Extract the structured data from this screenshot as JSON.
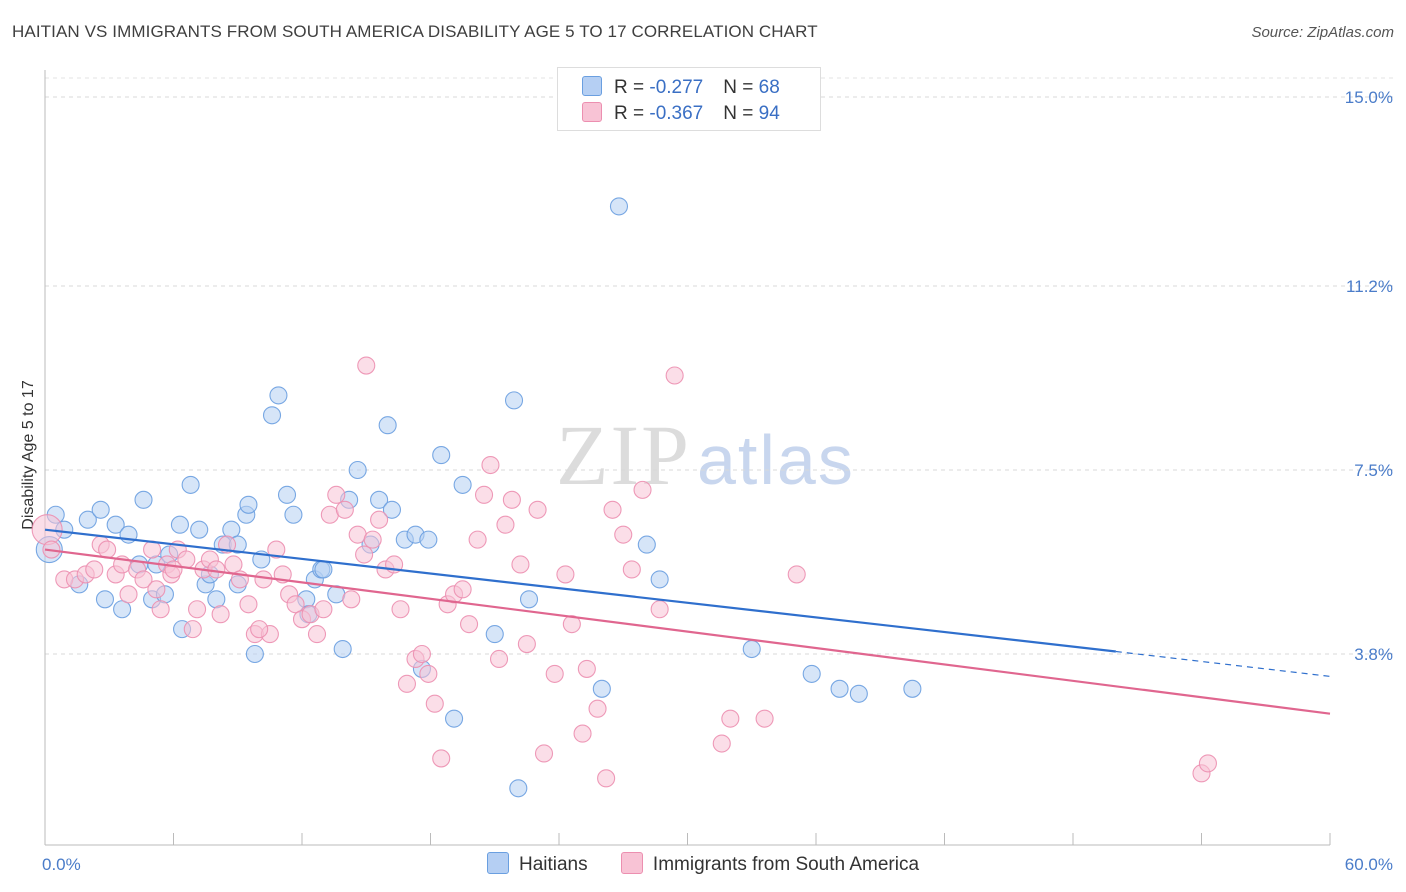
{
  "title": "HAITIAN VS IMMIGRANTS FROM SOUTH AMERICA DISABILITY AGE 5 TO 17 CORRELATION CHART",
  "source": "Source: ZipAtlas.com",
  "watermark": {
    "zip": "ZIP",
    "atlas": "atlas"
  },
  "legend": {
    "rows": [
      {
        "r_label": "R = ",
        "r_value": "-0.277",
        "n_label": "N = ",
        "n_value": "68"
      },
      {
        "r_label": "R = ",
        "r_value": "-0.367",
        "n_label": "N = ",
        "n_value": "94"
      }
    ]
  },
  "colors": {
    "blue": "#6a9fe0",
    "blue_fill": "#b5cff3",
    "pink": "#ec8fb0",
    "pink_fill": "#f8c3d5",
    "blue_line": "#2f6fcd",
    "pink_line": "#e0668f"
  },
  "chart_data": {
    "type": "scatter",
    "title": "HAITIAN VS IMMIGRANTS FROM SOUTH AMERICA DISABILITY AGE 5 TO 17 CORRELATION CHART",
    "xlabel": "",
    "ylabel": "Disability Age 5 to 17",
    "xlim": [
      0,
      60
    ],
    "ylim": [
      0,
      15.5
    ],
    "x_tick_labels": [
      "0.0%",
      "60.0%"
    ],
    "y_ticks": [
      3.8,
      7.5,
      11.2,
      15.0
    ],
    "y_tick_labels": [
      "3.8%",
      "7.5%",
      "11.2%",
      "15.0%"
    ],
    "grid": true,
    "legend_position": "top-center",
    "series": [
      {
        "name": "Haitians",
        "color": "#6a9fe0",
        "trend": {
          "x": [
            0,
            50
          ],
          "y": [
            6.3,
            3.85
          ],
          "dashed_to": [
            60,
            3.35
          ]
        },
        "points": [
          [
            0.2,
            5.9
          ],
          [
            0.5,
            6.6
          ],
          [
            0.9,
            6.3
          ],
          [
            1.6,
            5.2
          ],
          [
            2.0,
            6.5
          ],
          [
            2.6,
            6.7
          ],
          [
            2.8,
            4.9
          ],
          [
            3.3,
            6.4
          ],
          [
            3.6,
            4.7
          ],
          [
            3.9,
            6.2
          ],
          [
            4.4,
            5.6
          ],
          [
            4.6,
            6.9
          ],
          [
            5.0,
            4.9
          ],
          [
            5.2,
            5.6
          ],
          [
            5.6,
            5.0
          ],
          [
            5.8,
            5.8
          ],
          [
            6.3,
            6.4
          ],
          [
            6.4,
            4.3
          ],
          [
            6.8,
            7.2
          ],
          [
            7.2,
            6.3
          ],
          [
            7.5,
            5.2
          ],
          [
            7.7,
            5.4
          ],
          [
            8.0,
            4.9
          ],
          [
            8.3,
            6.0
          ],
          [
            8.7,
            6.3
          ],
          [
            9.0,
            5.2
          ],
          [
            9.4,
            6.6
          ],
          [
            9.5,
            6.8
          ],
          [
            9.8,
            3.8
          ],
          [
            10.1,
            5.7
          ],
          [
            10.6,
            8.6
          ],
          [
            10.9,
            9.0
          ],
          [
            11.3,
            7.0
          ],
          [
            11.6,
            6.6
          ],
          [
            12.2,
            4.9
          ],
          [
            12.3,
            4.6
          ],
          [
            12.6,
            5.3
          ],
          [
            12.9,
            5.5
          ],
          [
            13.6,
            5.0
          ],
          [
            13.9,
            3.9
          ],
          [
            14.2,
            6.9
          ],
          [
            14.6,
            7.5
          ],
          [
            15.2,
            6.0
          ],
          [
            15.6,
            6.9
          ],
          [
            16.0,
            8.4
          ],
          [
            16.2,
            6.7
          ],
          [
            16.8,
            6.1
          ],
          [
            17.3,
            6.2
          ],
          [
            17.6,
            3.5
          ],
          [
            17.9,
            6.1
          ],
          [
            18.5,
            7.8
          ],
          [
            19.1,
            2.5
          ],
          [
            19.5,
            7.2
          ],
          [
            21.0,
            4.2
          ],
          [
            21.9,
            8.9
          ],
          [
            22.1,
            1.1
          ],
          [
            22.6,
            4.9
          ],
          [
            26.0,
            3.1
          ],
          [
            26.8,
            12.8
          ],
          [
            28.1,
            6.0
          ],
          [
            28.7,
            5.3
          ],
          [
            33.0,
            3.9
          ],
          [
            35.8,
            3.4
          ],
          [
            37.1,
            3.1
          ],
          [
            38.0,
            3.0
          ],
          [
            40.5,
            3.1
          ],
          [
            13.0,
            5.5
          ],
          [
            9.0,
            6.0
          ]
        ]
      },
      {
        "name": "Immigrants from South America",
        "color": "#ec8fb0",
        "trend": {
          "x": [
            0,
            60
          ],
          "y": [
            5.9,
            2.6
          ]
        },
        "points": [
          [
            0.1,
            6.3
          ],
          [
            0.3,
            5.9
          ],
          [
            0.9,
            5.3
          ],
          [
            1.4,
            5.3
          ],
          [
            1.9,
            5.4
          ],
          [
            2.3,
            5.5
          ],
          [
            2.6,
            6.0
          ],
          [
            2.9,
            5.9
          ],
          [
            3.3,
            5.4
          ],
          [
            3.6,
            5.6
          ],
          [
            3.9,
            5.0
          ],
          [
            4.3,
            5.5
          ],
          [
            4.6,
            5.3
          ],
          [
            5.0,
            5.9
          ],
          [
            5.2,
            5.1
          ],
          [
            5.4,
            4.7
          ],
          [
            5.7,
            5.6
          ],
          [
            5.9,
            5.4
          ],
          [
            6.2,
            5.9
          ],
          [
            6.6,
            5.7
          ],
          [
            6.9,
            4.3
          ],
          [
            7.1,
            4.7
          ],
          [
            7.4,
            5.5
          ],
          [
            7.7,
            5.7
          ],
          [
            8.0,
            5.5
          ],
          [
            8.2,
            4.6
          ],
          [
            8.5,
            6.0
          ],
          [
            8.8,
            5.6
          ],
          [
            9.1,
            5.3
          ],
          [
            9.5,
            4.8
          ],
          [
            9.8,
            4.2
          ],
          [
            10.2,
            5.3
          ],
          [
            10.5,
            4.2
          ],
          [
            10.8,
            5.9
          ],
          [
            11.1,
            5.4
          ],
          [
            11.4,
            5.0
          ],
          [
            11.7,
            4.8
          ],
          [
            12.0,
            4.5
          ],
          [
            12.4,
            4.6
          ],
          [
            12.7,
            4.2
          ],
          [
            13.0,
            4.7
          ],
          [
            13.3,
            6.6
          ],
          [
            13.6,
            7.0
          ],
          [
            14.0,
            6.7
          ],
          [
            14.3,
            4.9
          ],
          [
            14.6,
            6.2
          ],
          [
            14.9,
            5.8
          ],
          [
            15.3,
            6.1
          ],
          [
            15.6,
            6.5
          ],
          [
            15.9,
            5.5
          ],
          [
            16.3,
            5.6
          ],
          [
            16.6,
            4.7
          ],
          [
            16.9,
            3.2
          ],
          [
            17.3,
            3.7
          ],
          [
            17.6,
            3.8
          ],
          [
            17.9,
            3.4
          ],
          [
            18.2,
            2.8
          ],
          [
            18.5,
            1.7
          ],
          [
            18.8,
            4.8
          ],
          [
            19.1,
            5.0
          ],
          [
            19.5,
            5.1
          ],
          [
            19.8,
            4.4
          ],
          [
            20.2,
            6.1
          ],
          [
            20.5,
            7.0
          ],
          [
            20.8,
            7.6
          ],
          [
            21.2,
            3.7
          ],
          [
            21.5,
            6.4
          ],
          [
            21.8,
            6.9
          ],
          [
            22.2,
            5.6
          ],
          [
            22.5,
            4.0
          ],
          [
            23.0,
            6.7
          ],
          [
            23.3,
            1.8
          ],
          [
            23.8,
            3.4
          ],
          [
            24.3,
            5.4
          ],
          [
            24.6,
            4.4
          ],
          [
            25.1,
            2.2
          ],
          [
            25.3,
            3.5
          ],
          [
            25.8,
            2.7
          ],
          [
            26.2,
            1.3
          ],
          [
            26.5,
            6.7
          ],
          [
            27.0,
            6.2
          ],
          [
            27.4,
            5.5
          ],
          [
            27.9,
            7.1
          ],
          [
            28.7,
            4.7
          ],
          [
            29.4,
            9.4
          ],
          [
            31.6,
            2.0
          ],
          [
            32.0,
            2.5
          ],
          [
            33.6,
            2.5
          ],
          [
            35.1,
            5.4
          ],
          [
            54.0,
            1.4
          ],
          [
            54.3,
            1.6
          ],
          [
            15.0,
            9.6
          ],
          [
            10.0,
            4.3
          ],
          [
            6.0,
            5.5
          ]
        ]
      }
    ]
  },
  "bottom_legend": [
    {
      "label": "Haitians"
    },
    {
      "label": "Immigrants from South America"
    }
  ]
}
